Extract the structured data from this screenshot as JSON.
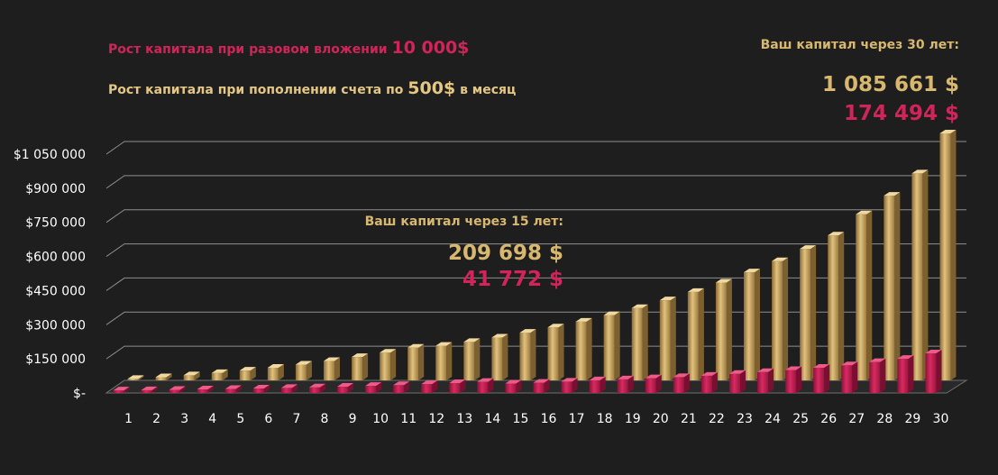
{
  "legend": {
    "pink_text": "Рост  капитала  при разовом вложении",
    "pink_amount": "10 000$",
    "gold_text": "Рост капитала  при пополнении счета по",
    "gold_amount": "500$",
    "gold_suffix": "в месяц"
  },
  "callout_30": {
    "label": "Ваш капитал  через 30 лет:",
    "gold_value": "1 085 661 $",
    "pink_value": "174 494 $"
  },
  "callout_15": {
    "label": "Ваш капитал  через 15 лет:",
    "gold_value": "209 698 $",
    "pink_value": "41 772 $"
  },
  "colors": {
    "gold": "#d8b86e",
    "pink": "#d0245a",
    "background": "#1f1e1f"
  },
  "chart_data": {
    "type": "bar",
    "title": "",
    "xlabel": "",
    "ylabel": "",
    "ylim": [
      0,
      1050000
    ],
    "y_ticks": [
      0,
      150000,
      300000,
      450000,
      600000,
      750000,
      900000,
      1050000
    ],
    "y_tick_labels": [
      "$-",
      "$150 000",
      "$300 000",
      "$450 000",
      "$600 000",
      "$750 000",
      "$900 000",
      "$1 050 000"
    ],
    "categories": [
      "1",
      "2",
      "3",
      "4",
      "5",
      "6",
      "7",
      "8",
      "9",
      "10",
      "11",
      "12",
      "13",
      "14",
      "15",
      "16",
      "17",
      "18",
      "19",
      "20",
      "21",
      "22",
      "23",
      "24",
      "25",
      "26",
      "27",
      "28",
      "29",
      "30"
    ],
    "series": [
      {
        "name": "Рост капитала при пополнении счета по 500$ в месяц",
        "color": "#d8b86e",
        "values": [
          6500,
          14000,
          22500,
          32000,
          43000,
          55500,
          69500,
          85000,
          102500,
          122000,
          143500,
          152000,
          169000,
          188000,
          209698,
          233000,
          258000,
          287000,
          318000,
          352000,
          389000,
          430000,
          475000,
          524000,
          578000,
          637000,
          730000,
          812000,
          910000,
          1085661
        ]
      },
      {
        "name": "Рост капитала при разовом вложении 10 000$",
        "color": "#d0245a",
        "values": [
          11200,
          12500,
          14000,
          15700,
          17600,
          19700,
          22100,
          24800,
          27700,
          31000,
          34700,
          38900,
          43600,
          48800,
          41772,
          45000,
          50000,
          56000,
          60000,
          65000,
          70000,
          76000,
          84000,
          92000,
          101000,
          111000,
          122000,
          136000,
          150000,
          174494
        ]
      }
    ]
  }
}
